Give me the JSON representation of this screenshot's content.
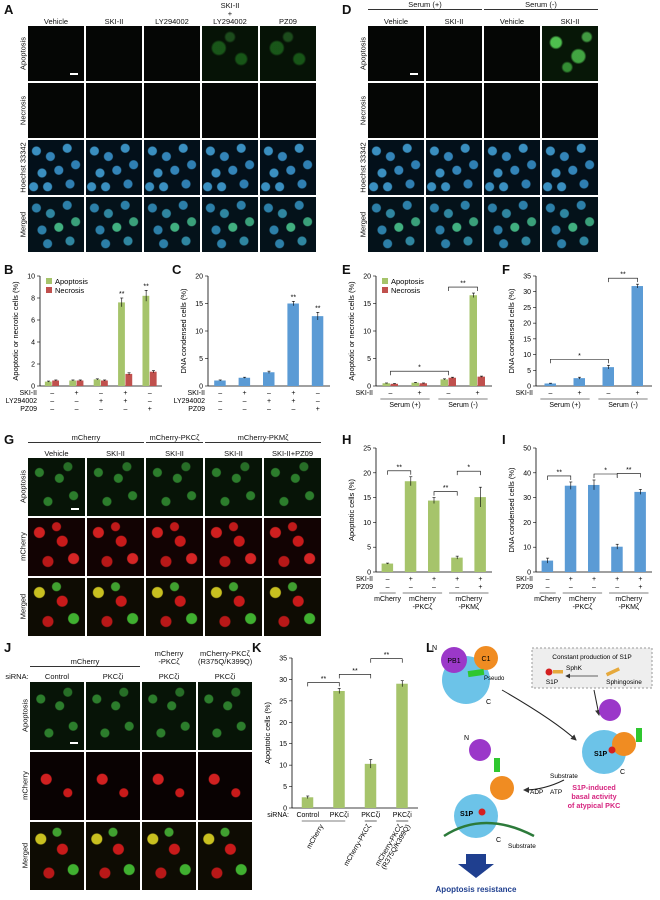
{
  "panels": {
    "A": "A",
    "B": "B",
    "C": "C",
    "D": "D",
    "E": "E",
    "F": "F",
    "G": "G",
    "H": "H",
    "I": "I",
    "J": "J",
    "K": "K",
    "L": "L"
  },
  "A": {
    "cols": [
      "Vehicle",
      "SKI-II",
      "LY294002",
      "SKI-II\n+\nLY294002",
      "PZ09"
    ],
    "rows": [
      "Apoptosis",
      "Necrosis",
      "Hoechst 33342",
      "Merged"
    ]
  },
  "D": {
    "groups": [
      "Serum (+)",
      "Serum (-)"
    ],
    "cols": [
      "Vehicle",
      "SKI-II",
      "Vehicle",
      "SKI-II"
    ],
    "rows": [
      "Apoptosis",
      "Necrosis",
      "Hoechst 33342",
      "Merged"
    ]
  },
  "G": {
    "groups": [
      "mCherry",
      "mCherry-PKCζ",
      "mCherry-PKMζ"
    ],
    "cols": [
      "Vehicle",
      "SKI-II",
      "SKI-II",
      "SKI-II",
      "SKI-II+PZ09"
    ],
    "rows": [
      "Apoptosis",
      "mCherry",
      "Merged"
    ]
  },
  "J": {
    "siRNA_label": "siRNA:",
    "groups": [
      "mCherry",
      "mCherry\n-PKCζ",
      "mCherry-PKCζ\n(R375Q/K399Q)"
    ],
    "cols": [
      "Control",
      "PKCζi",
      "PKCζi",
      "PKCζi"
    ],
    "rows": [
      "Apoptosis",
      "mCherry",
      "Merged"
    ]
  },
  "L": {
    "constant": "Constant production of S1P",
    "sphk": "SphK",
    "s1p": "S1P",
    "sphingosine": "Sphingosine",
    "pb1": "PB1",
    "c1": "C1",
    "pseudo": "Pseudo",
    "n": "N",
    "c": "C",
    "substrate": "Substrate",
    "adp": "ADP",
    "atp": "ATP",
    "basal": "S1P-induced\nbasal activity\nof atypical PKC",
    "resistance": "Apoptosis resistance"
  },
  "colors": {
    "green": "#a6c46b",
    "red": "#c0504d",
    "blue": "#5b9bd5",
    "magenta": "#d6247f",
    "navy": "#1f3f8f"
  },
  "chart_data": [
    {
      "panel": "B",
      "type": "bar",
      "ylabel": "Apoptotic or necrotic cells (%)",
      "ylim": [
        0,
        10
      ],
      "yticks": [
        0,
        2,
        4,
        6,
        8,
        10
      ],
      "legend": [
        "Apoptosis",
        "Necrosis"
      ],
      "conditions": [
        {
          "label": "SKI-II",
          "signs": [
            "–",
            "+",
            "–",
            "+",
            "–"
          ]
        },
        {
          "label": "LY294002",
          "signs": [
            "–",
            "–",
            "+",
            "+",
            "–"
          ]
        },
        {
          "label": "PZ09",
          "signs": [
            "–",
            "–",
            "–",
            "–",
            "+"
          ]
        }
      ],
      "series": [
        {
          "name": "Apoptosis",
          "values": [
            0.4,
            0.5,
            0.6,
            7.6,
            8.2
          ],
          "err": [
            0.05,
            0.05,
            0.05,
            0.4,
            0.5
          ]
        },
        {
          "name": "Necrosis",
          "values": [
            0.5,
            0.5,
            0.5,
            1.1,
            1.3
          ],
          "err": [
            0.05,
            0.05,
            0.05,
            0.1,
            0.1
          ]
        }
      ],
      "annot": [
        "",
        "",
        "",
        "**",
        "**"
      ]
    },
    {
      "panel": "C",
      "type": "bar",
      "ylabel": "DNA condensed cells (%)",
      "ylim": [
        0,
        20
      ],
      "yticks": [
        0,
        5,
        10,
        15,
        20
      ],
      "conditions": [
        {
          "label": "SKI-II",
          "signs": [
            "–",
            "+",
            "–",
            "+",
            "–"
          ]
        },
        {
          "label": "LY294002",
          "signs": [
            "–",
            "–",
            "+",
            "+",
            "–"
          ]
        },
        {
          "label": "PZ09",
          "signs": [
            "–",
            "–",
            "–",
            "–",
            "+"
          ]
        }
      ],
      "series": [
        {
          "values": [
            1.0,
            1.5,
            2.5,
            15.0,
            12.7
          ],
          "err": [
            0.1,
            0.1,
            0.2,
            0.4,
            0.7
          ]
        }
      ],
      "annot": [
        "",
        "",
        "",
        "**",
        "**"
      ]
    },
    {
      "panel": "E",
      "type": "bar",
      "ylabel": "Apoptotic or necrotic cells (%)",
      "ylim": [
        0,
        20
      ],
      "yticks": [
        0,
        5,
        10,
        15,
        20
      ],
      "legend": [
        "Apoptosis",
        "Necrosis"
      ],
      "conditions": [
        {
          "label": "SKI-II",
          "signs": [
            "–",
            "+",
            "–",
            "+"
          ]
        }
      ],
      "groups": [
        "Serum (+)",
        "Serum (-)"
      ],
      "series": [
        {
          "name": "Apoptosis",
          "values": [
            0.5,
            0.6,
            1.2,
            16.5
          ],
          "err": [
            0.05,
            0.05,
            0.1,
            0.4
          ]
        },
        {
          "name": "Necrosis",
          "values": [
            0.4,
            0.5,
            1.5,
            1.7
          ],
          "err": [
            0.05,
            0.05,
            0.1,
            0.1
          ]
        }
      ],
      "brackets": [
        {
          "from": 0,
          "to": 2,
          "label": "*"
        },
        {
          "from": 2,
          "to": 3,
          "label": "**"
        }
      ]
    },
    {
      "panel": "F",
      "type": "bar",
      "ylabel": "DNA condensed cells (%)",
      "ylim": [
        0,
        35
      ],
      "yticks": [
        0,
        5,
        10,
        15,
        20,
        25,
        30,
        35
      ],
      "conditions": [
        {
          "label": "SKI-II",
          "signs": [
            "–",
            "+",
            "–",
            "+"
          ]
        }
      ],
      "groups": [
        "Serum (+)",
        "Serum (-)"
      ],
      "series": [
        {
          "values": [
            0.8,
            2.5,
            6.0,
            31.8
          ],
          "err": [
            0.1,
            0.3,
            0.6,
            0.6
          ]
        }
      ],
      "brackets": [
        {
          "from": 0,
          "to": 2,
          "label": "*"
        },
        {
          "from": 2,
          "to": 3,
          "label": "**"
        }
      ]
    },
    {
      "panel": "H",
      "type": "bar",
      "ylabel": "Apoptotic cells (%)",
      "ylim": [
        0,
        25
      ],
      "yticks": [
        0,
        5,
        10,
        15,
        20,
        25
      ],
      "conditions": [
        {
          "label": "SKI-II",
          "signs": [
            "–",
            "+",
            "+",
            "+",
            "+"
          ]
        },
        {
          "label": "PZ09",
          "signs": [
            "–",
            "–",
            "–",
            "–",
            "+"
          ]
        }
      ],
      "groups": [
        "mCherry",
        "mCherry\n-PKCζ",
        "mCherry\n-PKMζ"
      ],
      "series": [
        {
          "values": [
            1.7,
            18.3,
            14.4,
            2.9,
            15.1
          ],
          "err": [
            0.1,
            0.9,
            0.6,
            0.3,
            2.0
          ]
        }
      ],
      "brackets": [
        {
          "from": 0,
          "to": 1,
          "label": "**"
        },
        {
          "from": 2,
          "to": 3,
          "label": "**"
        },
        {
          "from": 3,
          "to": 4,
          "label": "*"
        }
      ]
    },
    {
      "panel": "I",
      "type": "bar",
      "ylabel": "DNA condensed cells (%)",
      "ylim": [
        0,
        50
      ],
      "yticks": [
        0,
        10,
        20,
        30,
        40,
        50
      ],
      "conditions": [
        {
          "label": "SKI-II",
          "signs": [
            "–",
            "+",
            "+",
            "+",
            "+"
          ]
        },
        {
          "label": "PZ09",
          "signs": [
            "–",
            "–",
            "–",
            "–",
            "+"
          ]
        }
      ],
      "groups": [
        "mCherry",
        "mCherry\n-PKCζ",
        "mCherry\n-PKMζ"
      ],
      "series": [
        {
          "values": [
            4.6,
            34.8,
            35.1,
            10.2,
            32.3
          ],
          "err": [
            1.0,
            1.5,
            2.0,
            1.0,
            1.0
          ]
        }
      ],
      "brackets": [
        {
          "from": 0,
          "to": 1,
          "label": "**"
        },
        {
          "from": 2,
          "to": 3,
          "label": "*"
        },
        {
          "from": 3,
          "to": 4,
          "label": "**"
        }
      ]
    },
    {
      "panel": "K",
      "type": "bar",
      "ylabel": "Apoptotic cells (%)",
      "ylim": [
        0,
        35
      ],
      "yticks": [
        0,
        5,
        10,
        15,
        20,
        25,
        30,
        35
      ],
      "siRNA_label": "siRNA:",
      "categories": [
        "Control",
        "PKCζi",
        "PKCζi",
        "PKCζi"
      ],
      "groups": [
        "mCherry",
        "mCherry-PKCζ",
        "mCherry-PKCζ\n(R375Q/K399Q)"
      ],
      "series": [
        {
          "values": [
            2.5,
            27.3,
            10.3,
            29.0
          ],
          "err": [
            0.3,
            0.6,
            1.0,
            0.7
          ]
        }
      ],
      "brackets": [
        {
          "from": 0,
          "to": 1,
          "label": "**"
        },
        {
          "from": 1,
          "to": 2,
          "label": "**"
        },
        {
          "from": 2,
          "to": 3,
          "label": "**"
        }
      ]
    }
  ]
}
